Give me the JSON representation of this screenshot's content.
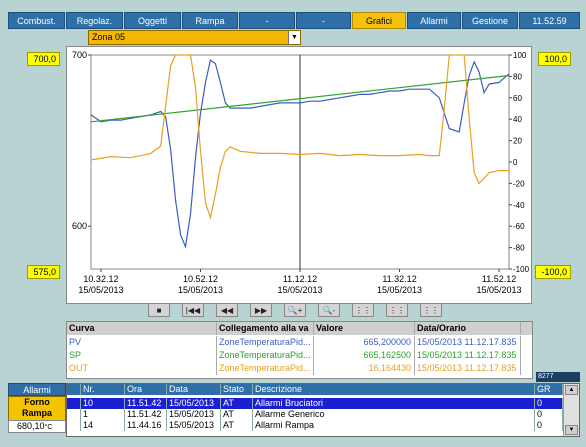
{
  "tabs": [
    {
      "label": "Combust."
    },
    {
      "label": "Regolaz."
    },
    {
      "label": "Oggetti"
    },
    {
      "label": "Rampa"
    },
    {
      "label": "-"
    },
    {
      "label": "-"
    },
    {
      "label": "Grafici",
      "active": true
    },
    {
      "label": "Allarmi"
    },
    {
      "label": "Gestione"
    },
    {
      "label": "11.52.59"
    }
  ],
  "zone_select": {
    "value": "Zona 05"
  },
  "left_axis": {
    "top_box": "700,0",
    "bottom_box": "575,0"
  },
  "right_axis": {
    "top_box": "100,0",
    "bottom_box": "-100,0"
  },
  "chart_data": {
    "type": "line",
    "left_ylim": [
      575,
      700
    ],
    "left_ticks": [
      "700",
      "600"
    ],
    "left_tick_values": [
      700,
      600
    ],
    "right_ylim": [
      -100,
      100
    ],
    "right_ticks": [
      "100",
      "80",
      "60",
      "40",
      "20",
      "0",
      "-20",
      "-40",
      "-60",
      "-80",
      "-100"
    ],
    "x_ticks": [
      {
        "time": "10.32.12",
        "date": "15/05/2013"
      },
      {
        "time": "10.52.12",
        "date": "15/05/2013"
      },
      {
        "time": "11.12.12",
        "date": "15/05/2013"
      },
      {
        "time": "11.32.12",
        "date": "15/05/2013"
      },
      {
        "time": "11.52.12",
        "date": "15/05/2013"
      }
    ],
    "xlim_min": [
      0,
      84
    ],
    "cursor_min": 42,
    "series": [
      {
        "name": "PV",
        "color": "#3b5fc0",
        "axis": "left",
        "x": [
          0,
          2,
          4,
          6,
          8,
          10,
          12,
          14,
          15,
          16,
          17,
          18,
          19,
          20,
          21,
          22,
          23,
          24,
          25,
          26,
          27,
          28,
          30,
          32,
          34,
          36,
          38,
          40,
          42,
          44,
          46,
          48,
          50,
          52,
          54,
          56,
          58,
          60,
          62,
          64,
          66,
          68,
          70,
          72,
          74,
          75,
          76,
          77,
          78,
          79,
          80,
          82,
          84
        ],
        "y": [
          665,
          661,
          662,
          662,
          663,
          664,
          665,
          667,
          664,
          645,
          615,
          595,
          588,
          607,
          640,
          666,
          684,
          697,
          695,
          684,
          672,
          669,
          669,
          669,
          670,
          671,
          672,
          672,
          672,
          673,
          673,
          674,
          675,
          676,
          677,
          677,
          678,
          679,
          679,
          680,
          680,
          680,
          675,
          657,
          655,
          672,
          688,
          696,
          690,
          678,
          683,
          684,
          689
        ]
      },
      {
        "name": "SP",
        "color": "#2ea02e",
        "axis": "left",
        "x": [
          0,
          84
        ],
        "y": [
          661,
          688
        ]
      },
      {
        "name": "OUT",
        "color": "#e8a020",
        "axis": "right",
        "x": [
          0,
          4,
          8,
          12,
          14,
          16,
          17,
          18,
          19,
          20,
          21,
          22,
          23,
          24,
          25,
          26,
          27,
          28,
          30,
          34,
          38,
          42,
          46,
          50,
          54,
          58,
          62,
          66,
          68,
          70,
          71,
          72,
          73,
          74,
          75,
          76,
          77,
          78,
          79,
          80,
          82,
          84
        ],
        "y": [
          2,
          5,
          4,
          8,
          15,
          90,
          100,
          100,
          100,
          100,
          70,
          10,
          -38,
          -52,
          -30,
          -5,
          10,
          14,
          10,
          8,
          8,
          7,
          8,
          6,
          7,
          6,
          6,
          7,
          6,
          6,
          50,
          100,
          100,
          100,
          100,
          40,
          -10,
          -20,
          -15,
          -10,
          -8,
          -8
        ]
      }
    ]
  },
  "controls": {
    "stop": "■",
    "first": "|◀◀",
    "back": "◀◀",
    "forward": "▶▶",
    "zoom_in": "🔍+",
    "zoom_out": "🔍-",
    "b7": "⋮⋮",
    "b8": "⋮⋮",
    "b9": "⋮⋮"
  },
  "legend_table": {
    "headers": [
      "Curva",
      "Collegamento alla va",
      "Valore",
      "Data/Orario"
    ],
    "rows": [
      {
        "curva": "PV",
        "link": "ZoneTemperaturaPid...",
        "value": "665,200000",
        "time": "15/05/2013 11.12.17.835",
        "color": "#3b5fc0"
      },
      {
        "curva": "SP",
        "link": "ZoneTemperaturaPid...",
        "value": "665,162500",
        "time": "15/05/2013 11.12.17.835",
        "color": "#2ea02e"
      },
      {
        "curva": "OUT",
        "link": "ZoneTemperaturaPid...",
        "value": "16,164430",
        "time": "15/05/2013 11.12.17.835",
        "color": "#e8a020"
      }
    ]
  },
  "small_tag": "8277",
  "alarm_tab": {
    "label": "Allarmi"
  },
  "furnace": {
    "line1": "Forno",
    "line2": "Rampa",
    "temp": "680,10",
    "unit": "°C"
  },
  "alarm_table": {
    "headers": [
      "",
      "Nr.",
      "Ora",
      "Data",
      "Stato",
      "Descrizione",
      "GR"
    ],
    "rows": [
      {
        "nr": "10",
        "ora": "11.51.42",
        "data": "15/05/2013",
        "stato": "AT",
        "desc": "Allarmi Bruciatori",
        "gr": "0",
        "selected": true
      },
      {
        "nr": "1",
        "ora": "11.51.42",
        "data": "15/05/2013",
        "stato": "AT",
        "desc": "Allarme Generico",
        "gr": "0"
      },
      {
        "nr": "14",
        "ora": "11.44.16",
        "data": "15/05/2013",
        "stato": "AT",
        "desc": "Allarmi Rampa",
        "gr": "0"
      }
    ]
  }
}
